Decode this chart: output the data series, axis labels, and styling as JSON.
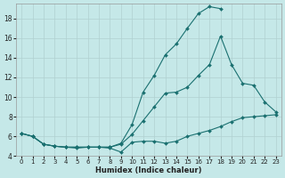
{
  "xlabel": "Humidex (Indice chaleur)",
  "background_color": "#c5e8e8",
  "grid_color": "#b0d0d0",
  "line_color": "#1a7070",
  "xlim": [
    -0.5,
    23.5
  ],
  "ylim": [
    4,
    19.5
  ],
  "yticks": [
    4,
    6,
    8,
    10,
    12,
    14,
    16,
    18
  ],
  "xticks": [
    0,
    1,
    2,
    3,
    4,
    5,
    6,
    7,
    8,
    9,
    10,
    11,
    12,
    13,
    14,
    15,
    16,
    17,
    18,
    19,
    20,
    21,
    22,
    23
  ],
  "series1_x": [
    0,
    1,
    2,
    3,
    4,
    5,
    6,
    7,
    8,
    9,
    10,
    11,
    12,
    13,
    14,
    15,
    16,
    17,
    18,
    19,
    20,
    21,
    22,
    23
  ],
  "series1_y": [
    6.3,
    6.0,
    5.2,
    5.0,
    4.9,
    4.8,
    4.9,
    4.9,
    4.8,
    4.4,
    5.4,
    5.5,
    5.5,
    5.3,
    5.5,
    6.0,
    6.3,
    6.6,
    7.0,
    7.5,
    7.9,
    8.0,
    8.1,
    8.2
  ],
  "series2_x": [
    0,
    1,
    2,
    3,
    4,
    5,
    6,
    7,
    8,
    9,
    10,
    11,
    12,
    13,
    14,
    15,
    16,
    17,
    18,
    19,
    20,
    21,
    22,
    23
  ],
  "series2_y": [
    6.3,
    6.0,
    5.2,
    5.0,
    4.9,
    4.9,
    4.9,
    4.9,
    4.9,
    5.2,
    6.2,
    7.6,
    9.0,
    10.4,
    10.5,
    11.0,
    12.2,
    13.3,
    16.2,
    13.3,
    11.4,
    11.2,
    9.5,
    8.5
  ],
  "series3_x": [
    0,
    1,
    2,
    3,
    4,
    5,
    6,
    7,
    8,
    9,
    10,
    11,
    12,
    13,
    14,
    15,
    16,
    17,
    18
  ],
  "series3_y": [
    6.3,
    6.0,
    5.2,
    5.0,
    4.9,
    4.9,
    4.9,
    4.9,
    4.9,
    5.3,
    7.2,
    10.5,
    12.2,
    14.3,
    15.4,
    17.0,
    18.5,
    19.2,
    19.0
  ]
}
